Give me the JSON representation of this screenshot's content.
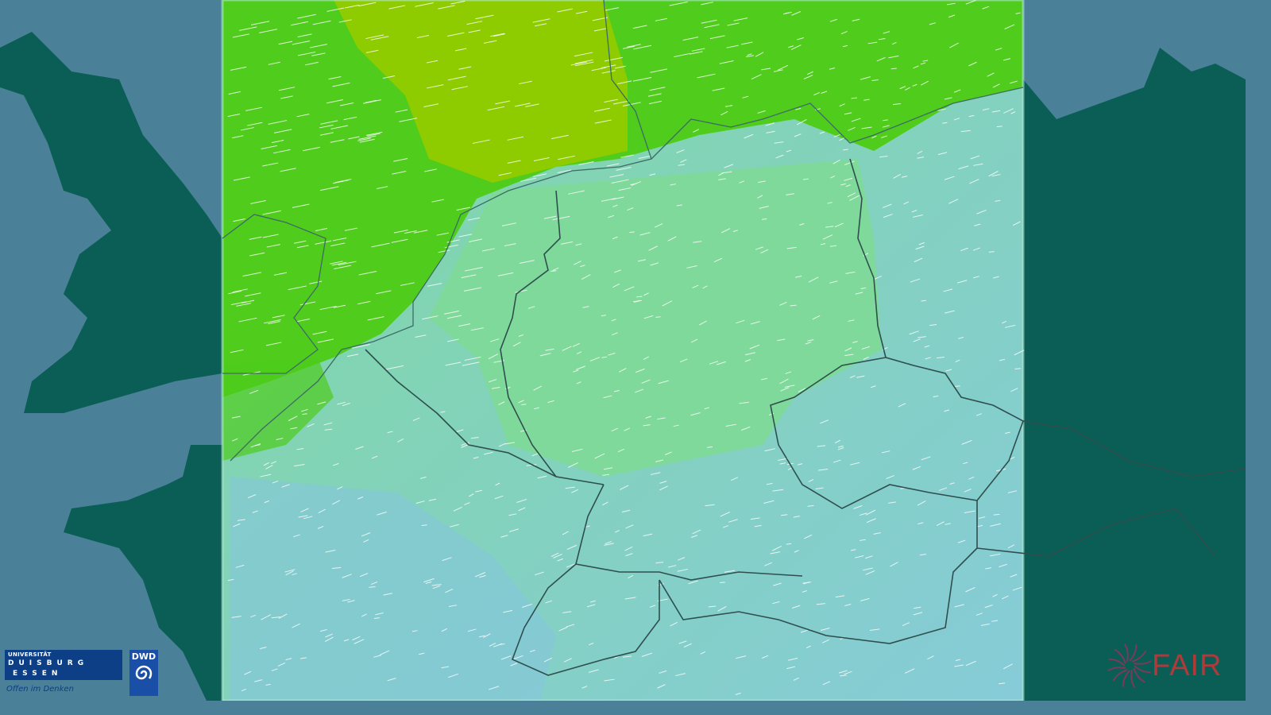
{
  "map": {
    "colors": {
      "sea": "#4a8098",
      "land_outside": "#0b5e55",
      "model_low_wind": "#82cbd6",
      "model_mid_wind": "#7fd99a",
      "model_high_wind": "#4fcc1c",
      "model_very_high_wind": "#8ecc00",
      "wind_barbs": "#ffffff",
      "borders": "#2f4f4f"
    },
    "layers": [
      "wind-speed-field",
      "wind-streaks",
      "country-borders",
      "coastlines"
    ]
  },
  "logos": {
    "ude": {
      "line1": "UNIVERSITÄT",
      "line2": "DUISBURG",
      "line3": "ESSEN",
      "slogan": "Offen im Denken"
    },
    "dwd": {
      "text": "DWD"
    },
    "fair": {
      "text": "FAIR"
    }
  }
}
